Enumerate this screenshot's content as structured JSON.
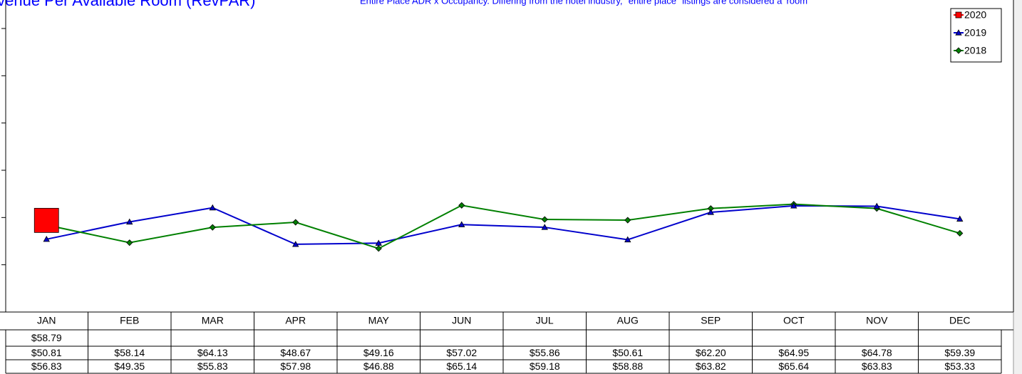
{
  "chart_data": {
    "type": "line",
    "title": "Revenue Per Available Room (RevPAR)",
    "subtitle": "Entire Place ADR x Occupancy. Differing from the hotel industry, \"entire place\" listings are considered a 'room'",
    "categories": [
      "JAN",
      "FEB",
      "MAR",
      "APR",
      "MAY",
      "JUN",
      "JUL",
      "AUG",
      "SEP",
      "OCT",
      "NOV",
      "DEC"
    ],
    "ylim": [
      20,
      140
    ],
    "yticks": [
      20,
      40,
      60,
      80,
      100,
      120,
      140
    ],
    "legend": "upper right",
    "series": [
      {
        "name": "2020",
        "color": "#ff0000",
        "marker": "square",
        "values": [
          58.79,
          null,
          null,
          null,
          null,
          null,
          null,
          null,
          null,
          null,
          null,
          null
        ],
        "value_labels": [
          "$58.79",
          null,
          null,
          null,
          null,
          null,
          null,
          null,
          null,
          null,
          null,
          null
        ]
      },
      {
        "name": "2019",
        "color": "#0000cc",
        "marker": "triangle",
        "values": [
          50.81,
          58.14,
          64.13,
          48.67,
          49.16,
          57.02,
          55.86,
          50.61,
          62.2,
          64.95,
          64.78,
          59.39
        ],
        "value_labels": [
          "$50.81",
          "$58.14",
          "$64.13",
          "$48.67",
          "$49.16",
          "$57.02",
          "$55.86",
          "$50.61",
          "$62.20",
          "$64.95",
          "$64.78",
          "$59.39"
        ]
      },
      {
        "name": "2018",
        "color": "#008000",
        "marker": "diamond",
        "values": [
          56.83,
          49.35,
          55.83,
          57.98,
          46.88,
          65.14,
          59.18,
          58.88,
          63.82,
          65.64,
          63.83,
          53.33
        ],
        "value_labels": [
          "$56.83",
          "$49.35",
          "$55.83",
          "$57.98",
          "$46.88",
          "$65.14",
          "$59.18",
          "$58.88",
          "$63.82",
          "$65.64",
          "$63.83",
          "$53.33"
        ]
      }
    ]
  }
}
